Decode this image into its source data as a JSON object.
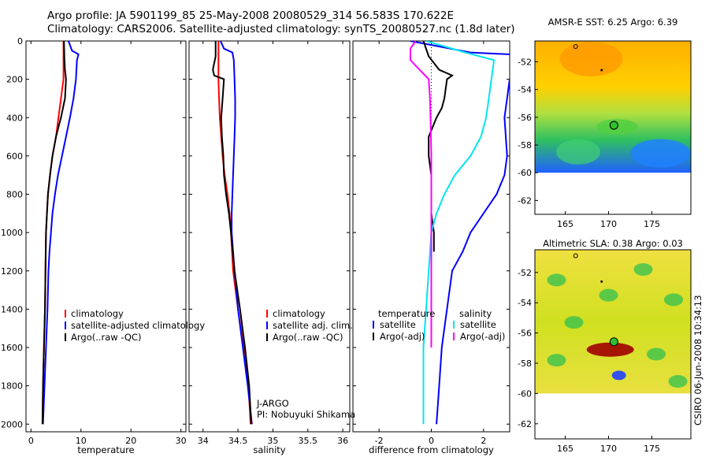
{
  "header": {
    "line1": "Argo profile: JA 5901199_85 25-May-2008 20080529_314 56.583S 170.622E",
    "line2": "Climatology: CARS2006. Satellite-adjusted climatology: synTS_20080527.nc (1.8d later)"
  },
  "side_stamp": "CSIRO 06-Jun-2008 10:34:13",
  "chart_data": [
    {
      "type": "line",
      "id": "temperature",
      "xlabel": "temperature",
      "xlim": [
        -1,
        31
      ],
      "xticks": [
        "0",
        "10",
        "20",
        "30"
      ],
      "ylim": [
        2040,
        0
      ],
      "yticks": [
        "0",
        "200",
        "400",
        "600",
        "800",
        "1000",
        "1200",
        "1400",
        "1600",
        "1800",
        "2000"
      ],
      "legend": [
        "climatology",
        "satellite-adjusted climatology",
        "Argo(..raw -QC)"
      ],
      "colors": {
        "climatology": "#ff0000",
        "satellite": "#0000ff",
        "argo": "#000000"
      },
      "series": [
        {
          "name": "climatology",
          "color": "#ff0000",
          "points": [
            [
              6.5,
              0
            ],
            [
              6.5,
              100
            ],
            [
              6.5,
              200
            ],
            [
              6.0,
              300
            ],
            [
              5.5,
              400
            ],
            [
              5.0,
              500
            ],
            [
              4.3,
              600
            ],
            [
              3.8,
              700
            ],
            [
              3.4,
              800
            ],
            [
              3.2,
              900
            ],
            [
              3.0,
              1000
            ],
            [
              2.9,
              1200
            ],
            [
              2.8,
              1400
            ],
            [
              2.6,
              1600
            ],
            [
              2.4,
              1800
            ],
            [
              2.3,
              2000
            ]
          ]
        },
        {
          "name": "satellite-adjusted climatology",
          "color": "#0000ff",
          "points": [
            [
              7.5,
              0
            ],
            [
              8.2,
              50
            ],
            [
              9.5,
              70
            ],
            [
              9.2,
              100
            ],
            [
              9.0,
              200
            ],
            [
              8.5,
              300
            ],
            [
              7.8,
              400
            ],
            [
              7.0,
              500
            ],
            [
              6.2,
              600
            ],
            [
              5.4,
              700
            ],
            [
              4.8,
              800
            ],
            [
              4.3,
              900
            ],
            [
              4.0,
              1000
            ],
            [
              3.7,
              1100
            ],
            [
              3.5,
              1200
            ],
            [
              3.3,
              1400
            ],
            [
              3.0,
              1600
            ],
            [
              2.7,
              1800
            ],
            [
              2.4,
              2000
            ]
          ]
        },
        {
          "name": "Argo(..raw -QC)",
          "color": "#000000",
          "points": [
            [
              6.6,
              0
            ],
            [
              6.7,
              100
            ],
            [
              6.8,
              150
            ],
            [
              7.0,
              200
            ],
            [
              6.8,
              300
            ],
            [
              6.0,
              400
            ],
            [
              5.5,
              450
            ],
            [
              5.0,
              500
            ],
            [
              4.3,
              600
            ],
            [
              3.8,
              700
            ],
            [
              3.4,
              800
            ],
            [
              3.2,
              900
            ],
            [
              3.0,
              1000
            ],
            [
              2.9,
              1200
            ],
            [
              2.8,
              1400
            ],
            [
              2.6,
              1600
            ],
            [
              2.4,
              1800
            ],
            [
              2.3,
              2000
            ]
          ]
        }
      ]
    },
    {
      "type": "line",
      "id": "salinity",
      "xlabel": "salinity",
      "xlim": [
        33.8,
        36.1
      ],
      "xticks": [
        "34",
        "34.5",
        "35",
        "35.5",
        "36"
      ],
      "ylim": [
        2040,
        0
      ],
      "legend": [
        "climatology",
        "satellite adj. clim.",
        "Argo(..raw -QC)"
      ],
      "annotation": [
        "J-ARGO",
        "PI: Nobuyuki Shikama"
      ],
      "series": [
        {
          "name": "climatology",
          "color": "#ff0000",
          "points": [
            [
              34.22,
              0
            ],
            [
              34.22,
              100
            ],
            [
              34.22,
              200
            ],
            [
              34.23,
              300
            ],
            [
              34.24,
              400
            ],
            [
              34.26,
              500
            ],
            [
              34.28,
              600
            ],
            [
              34.31,
              700
            ],
            [
              34.35,
              800
            ],
            [
              34.38,
              900
            ],
            [
              34.4,
              1000
            ],
            [
              34.43,
              1200
            ],
            [
              34.5,
              1400
            ],
            [
              34.58,
              1600
            ],
            [
              34.65,
              1800
            ],
            [
              34.68,
              2000
            ]
          ]
        },
        {
          "name": "satellite adj. clim.",
          "color": "#0000ff",
          "points": [
            [
              34.25,
              0
            ],
            [
              34.3,
              40
            ],
            [
              34.42,
              60
            ],
            [
              34.44,
              100
            ],
            [
              34.45,
              200
            ],
            [
              34.46,
              300
            ],
            [
              34.46,
              400
            ],
            [
              34.45,
              500
            ],
            [
              34.44,
              600
            ],
            [
              34.43,
              700
            ],
            [
              34.42,
              800
            ],
            [
              34.41,
              900
            ],
            [
              34.41,
              1000
            ],
            [
              34.43,
              1100
            ],
            [
              34.45,
              1200
            ],
            [
              34.5,
              1400
            ],
            [
              34.57,
              1600
            ],
            [
              34.64,
              1800
            ],
            [
              34.7,
              2000
            ]
          ]
        },
        {
          "name": "Argo(..raw -QC)",
          "color": "#000000",
          "points": [
            [
              34.18,
              0
            ],
            [
              34.18,
              80
            ],
            [
              34.14,
              150
            ],
            [
              34.16,
              180
            ],
            [
              34.3,
              200
            ],
            [
              34.28,
              300
            ],
            [
              34.26,
              400
            ],
            [
              34.27,
              500
            ],
            [
              34.29,
              600
            ],
            [
              34.3,
              700
            ],
            [
              34.33,
              800
            ],
            [
              34.37,
              900
            ],
            [
              34.4,
              1000
            ],
            [
              34.45,
              1200
            ],
            [
              34.53,
              1400
            ],
            [
              34.6,
              1600
            ],
            [
              34.66,
              1800
            ],
            [
              34.69,
              2000
            ]
          ]
        }
      ]
    },
    {
      "type": "line",
      "id": "difference",
      "xlabel": "difference from climatology",
      "xlim": [
        -3,
        3
      ],
      "xticks": [
        "-2",
        "0",
        "2"
      ],
      "ylim": [
        2040,
        0
      ],
      "legend": {
        "temperature": "temperature",
        "salinity": "salinity",
        "satellite": "satellite",
        "argo": "Argo(-adj)"
      },
      "series": [
        {
          "name": "temperature satellite",
          "color": "#0000ff",
          "points": [
            [
              -0.8,
              0
            ],
            [
              1.5,
              60
            ],
            [
              3.0,
              70
            ],
            [
              3.2,
              100
            ],
            [
              3.0,
              200
            ],
            [
              2.8,
              400
            ],
            [
              2.9,
              600
            ],
            [
              2.8,
              700
            ],
            [
              2.5,
              800
            ],
            [
              2.0,
              900
            ],
            [
              1.5,
              1000
            ],
            [
              1.2,
              1100
            ],
            [
              0.8,
              1200
            ],
            [
              0.6,
              1400
            ],
            [
              0.4,
              1600
            ],
            [
              0.3,
              1800
            ],
            [
              0.2,
              2000
            ]
          ]
        },
        {
          "name": "temperature Argo(-adj)",
          "color": "#000000",
          "points": [
            [
              -0.3,
              0
            ],
            [
              -0.1,
              80
            ],
            [
              0.3,
              150
            ],
            [
              0.8,
              180
            ],
            [
              0.6,
              200
            ],
            [
              0.5,
              300
            ],
            [
              0.4,
              350
            ],
            [
              0.2,
              400
            ],
            [
              -0.1,
              500
            ],
            [
              -0.1,
              600
            ],
            [
              0.0,
              700
            ],
            [
              0.0,
              800
            ],
            [
              0.0,
              900
            ],
            [
              0.1,
              1000
            ],
            [
              0.1,
              1100
            ]
          ]
        },
        {
          "name": "salinity satellite",
          "color": "#00e5ee",
          "points": [
            [
              -0.2,
              0
            ],
            [
              1.3,
              60
            ],
            [
              2.4,
              100
            ],
            [
              2.3,
              200
            ],
            [
              2.2,
              300
            ],
            [
              2.1,
              400
            ],
            [
              1.9,
              500
            ],
            [
              1.5,
              600
            ],
            [
              0.9,
              700
            ],
            [
              0.5,
              800
            ],
            [
              0.2,
              900
            ],
            [
              0.0,
              1000
            ],
            [
              -0.1,
              1200
            ],
            [
              -0.2,
              1400
            ],
            [
              -0.3,
              1600
            ],
            [
              -0.3,
              1800
            ],
            [
              -0.3,
              2000
            ]
          ]
        },
        {
          "name": "salinity Argo(-adj)",
          "color": "#ff00ff",
          "points": [
            [
              -0.6,
              0
            ],
            [
              -0.8,
              40
            ],
            [
              -0.8,
              100
            ],
            [
              -0.1,
              200
            ],
            [
              -0.05,
              300
            ],
            [
              -0.03,
              400
            ],
            [
              0.0,
              600
            ],
            [
              0.0,
              800
            ],
            [
              0.0,
              1000
            ],
            [
              0.0,
              1200
            ],
            [
              0.0,
              1400
            ],
            [
              0.0,
              1600
            ]
          ]
        }
      ]
    },
    {
      "type": "heatmap",
      "id": "amsr",
      "title": "AMSR-E SST: 6.25 Argo: 6.39",
      "xticks": [
        "165",
        "170",
        "175"
      ],
      "yticks": [
        "-52",
        "-54",
        "-56",
        "-58",
        "-60",
        "-62"
      ],
      "xlim": [
        161.5,
        179.5
      ],
      "ylim": [
        -63,
        -50.5
      ],
      "data_extent_lat": [
        -60,
        -50.5
      ],
      "argo_marker": {
        "lon": 170.622,
        "lat": -56.583
      },
      "colors": {
        "warm": "#ff8c00",
        "mid": "#f5e600",
        "green": "#33cc33",
        "cold": "#1e4bff"
      }
    },
    {
      "type": "heatmap",
      "id": "sla",
      "title": "Altimetric SLA: 0.38 Argo: 0.03",
      "xticks": [
        "165",
        "170",
        "175"
      ],
      "yticks": [
        "-52",
        "-54",
        "-56",
        "-58",
        "-60",
        "-62"
      ],
      "xlim": [
        161.5,
        179.5
      ],
      "ylim": [
        -63,
        -50.5
      ],
      "data_extent_lat": [
        -60,
        -50.5
      ],
      "argo_marker": {
        "lon": 170.622,
        "lat": -56.583
      },
      "colors": {
        "high": "#a00000",
        "mid": "#f5e600",
        "green": "#33cc33",
        "low": "#1e4bff"
      }
    }
  ]
}
